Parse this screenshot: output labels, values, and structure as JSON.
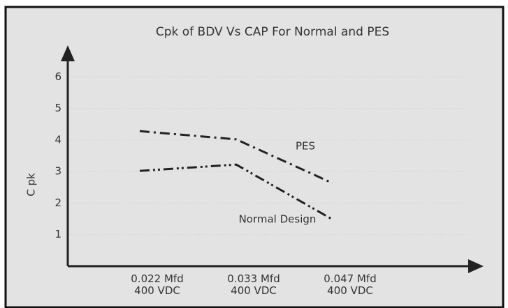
{
  "chart_data": {
    "type": "line",
    "title": "Cpk of BDV  Vs CAP  For Normal and PES",
    "y_label": "C pk",
    "categories": [
      "0.022 Mfd\n400 VDC",
      "0.033 Mfd\n400 VDC",
      "0.047 Mfd\n400 VDC"
    ],
    "series": [
      {
        "name": "PES",
        "color": "#222222",
        "dash": "14 6 3 6",
        "values": [
          4.28,
          4.02,
          2.63
        ]
      },
      {
        "name": "Normal Design",
        "color": "#222222",
        "dash": "14 5 3 4 3 5",
        "values": [
          3.02,
          3.22,
          1.48
        ]
      }
    ],
    "ylim": [
      0,
      7
    ],
    "yticks": [
      1,
      2,
      3,
      4,
      5,
      6
    ],
    "grid": true
  }
}
